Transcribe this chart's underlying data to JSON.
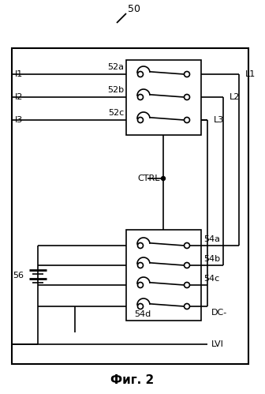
{
  "title": "Фиг. 2",
  "label_50": "50",
  "label_52a": "52a",
  "label_52b": "52b",
  "label_52c": "52c",
  "label_54a": "54a",
  "label_54b": "54b",
  "label_54c": "54c",
  "label_54d": "54d",
  "label_56": "56",
  "label_CTRL": "CTRL",
  "label_DC": "DC-",
  "label_LVI": "LVI",
  "label_I1": "I1",
  "label_I2": "I2",
  "label_I3": "I3",
  "label_L1": "L1",
  "label_L2": "L2",
  "label_L3": "L3",
  "bg_color": "#ffffff",
  "line_color": "#000000",
  "figsize": [
    3.36,
    4.99
  ],
  "dpi": 100
}
